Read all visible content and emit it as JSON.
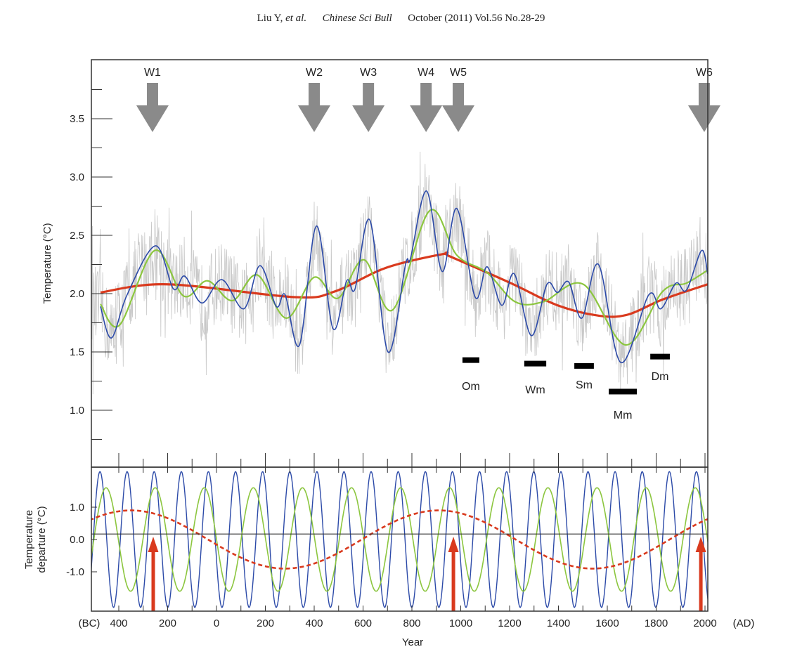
{
  "header": {
    "authors": "Liu Y,",
    "etal": "et al.",
    "journal": "Chinese Sci Bull",
    "issue": "October (2011) Vol.56 No.28-29"
  },
  "chart_data": [
    {
      "type": "line",
      "panel": "top",
      "ylabel": "Temperature (°C)",
      "ylim": [
        0.5,
        4.0
      ],
      "xlim": [
        -510,
        2011
      ],
      "yticks": [
        "3.5",
        "3.0",
        "2.5",
        "2.0",
        "1.5",
        "1.0"
      ],
      "ytick_values": [
        3.5,
        3.0,
        2.5,
        2.0,
        1.5,
        1.0
      ],
      "colors": {
        "raw": "#c8c8c8",
        "blue": "#2c4aa8",
        "green": "#8cc63f",
        "red": "#d93a1e",
        "arrow": "#8a8a8a",
        "bar": "#000000"
      },
      "series": [
        {
          "color": "blue",
          "x": [
            -475,
            -430,
            -366,
            -250,
            -176,
            -130,
            -60,
            22,
            112,
            178,
            245,
            281,
            340,
            409,
            477,
            533,
            567,
            628,
            702,
            774,
            794,
            860,
            924,
            984,
            1059,
            1108,
            1168,
            1219,
            1289,
            1353,
            1396,
            1442,
            1496,
            1564,
            1655,
            1770,
            1819,
            1881,
            1924,
            1986,
            2011
          ],
          "y": [
            1.89,
            1.62,
            1.99,
            2.41,
            2.04,
            2.15,
            1.92,
            2.12,
            1.87,
            2.24,
            1.89,
            1.99,
            1.56,
            2.58,
            1.7,
            2.11,
            2.04,
            2.63,
            1.5,
            2.25,
            2.3,
            2.88,
            2.19,
            2.73,
            1.97,
            2.23,
            1.9,
            2.17,
            1.64,
            2.08,
            2.01,
            2.1,
            1.79,
            2.25,
            1.41,
            1.99,
            1.87,
            2.09,
            2.03,
            2.37,
            2.17
          ]
        },
        {
          "color": "green",
          "x": [
            -475,
            -397,
            -253,
            -135,
            -37,
            65,
            167,
            286,
            400,
            497,
            604,
            721,
            872,
            984,
            1108,
            1223,
            1338,
            1502,
            1675,
            1827,
            1924,
            2010
          ],
          "y": [
            1.91,
            1.73,
            2.37,
            1.98,
            2.11,
            1.94,
            2.16,
            1.79,
            2.14,
            1.96,
            2.29,
            1.86,
            2.71,
            2.33,
            2.18,
            1.93,
            1.93,
            2.08,
            1.56,
            2.02,
            2.09,
            2.2
          ]
        },
        {
          "color": "red",
          "x": [
            -475,
            -201,
            322,
            486,
            692,
            929,
            955,
            1205,
            1396,
            1568,
            1684,
            1827,
            2011
          ],
          "y": [
            2.01,
            2.08,
            1.97,
            2.02,
            2.22,
            2.34,
            2.32,
            2.09,
            1.9,
            1.81,
            1.82,
            1.95,
            2.08
          ]
        }
      ],
      "warm_periods": [
        {
          "label": "W1",
          "year": -262
        },
        {
          "label": "W2",
          "year": 400
        },
        {
          "label": "W3",
          "year": 622
        },
        {
          "label": "W4",
          "year": 858
        },
        {
          "label": "W5",
          "year": 990
        },
        {
          "label": "W6",
          "year": 1997
        }
      ],
      "cold_periods": [
        {
          "label": "Om",
          "start": 1007,
          "end": 1076,
          "value": 1.43
        },
        {
          "label": "Wm",
          "start": 1260,
          "end": 1350,
          "value": 1.4
        },
        {
          "label": "Sm",
          "start": 1465,
          "end": 1545,
          "value": 1.38
        },
        {
          "label": "Mm",
          "start": 1606,
          "end": 1721,
          "value": 1.16
        },
        {
          "label": "Dm",
          "start": 1776,
          "end": 1856,
          "value": 1.46
        }
      ]
    },
    {
      "type": "line",
      "panel": "bottom",
      "ylabel_line1": "Temperature",
      "ylabel_line2": "departure (°C)",
      "xlabel": "Year",
      "ylim": [
        -2.2,
        2.2
      ],
      "yticks": [
        "1.0",
        "0.0",
        "-1.0"
      ],
      "ytick_values": [
        1.0,
        0.0,
        -1.0
      ],
      "reference_line": 0.17,
      "xticks": [
        "400",
        "200",
        "0",
        "200",
        "400",
        "600",
        "800",
        "1000",
        "1200",
        "1400",
        "1600",
        "1800",
        "2000"
      ],
      "xtick_values": [
        -400,
        -200,
        0,
        200,
        400,
        600,
        800,
        1000,
        1200,
        1400,
        1600,
        1800,
        2000
      ],
      "x_era_left": "(BC)",
      "x_era_right": "(AD)",
      "sinusoids": [
        {
          "color": "blue",
          "period_years": 111,
          "amplitude": 2.1,
          "peak_year": -477,
          "style": "solid"
        },
        {
          "color": "green",
          "period_years": 201,
          "amplitude": 1.6,
          "peak_year": -452,
          "style": "solid"
        },
        {
          "color": "red",
          "period_years": 1260,
          "amplitude": 0.9,
          "peak_year": -350,
          "style": "dashed"
        }
      ],
      "markers_years": [
        -259,
        970,
        1983
      ]
    }
  ]
}
